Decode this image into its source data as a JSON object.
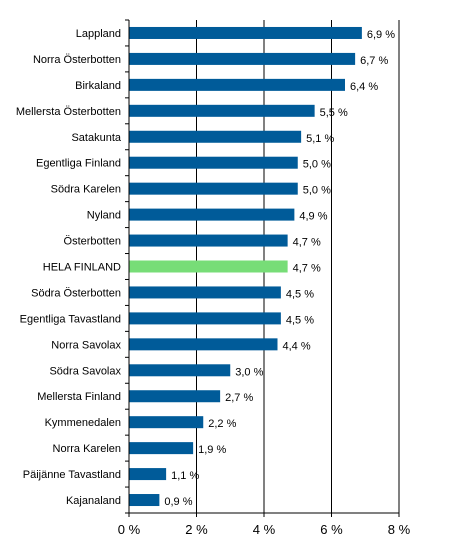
{
  "chart_data": {
    "type": "bar",
    "orientation": "horizontal",
    "categories": [
      "Lappland",
      "Norra Österbotten",
      "Birkaland",
      "Mellersta Österbotten",
      "Satakunta",
      "Egentliga Finland",
      "Södra Karelen",
      "Nyland",
      "Österbotten",
      "HELA FINLAND",
      "Södra Österbotten",
      "Egentliga Tavastland",
      "Norra Savolax",
      "Södra Savolax",
      "Mellersta Finland",
      "Kymmenedalen",
      "Norra Karelen",
      "Päijänne Tavastland",
      "Kajanaland"
    ],
    "values": [
      6.9,
      6.7,
      6.4,
      5.5,
      5.1,
      5.0,
      5.0,
      4.9,
      4.7,
      4.7,
      4.5,
      4.5,
      4.4,
      3.0,
      2.7,
      2.2,
      1.9,
      1.1,
      0.9
    ],
    "value_labels": [
      "6,9 %",
      "6,7 %",
      "6,4 %",
      "5,5 %",
      "5,1 %",
      "5,0 %",
      "5,0 %",
      "4,9 %",
      "4,7 %",
      "4,7 %",
      "4,5 %",
      "4,5 %",
      "4,4 %",
      "3,0 %",
      "2,7 %",
      "2,2 %",
      "1,9 %",
      "1,1 %",
      "0,9 %"
    ],
    "highlight": "HELA FINLAND",
    "xlim": [
      0,
      8
    ],
    "x_ticks": [
      0,
      2,
      4,
      6,
      8
    ],
    "x_tick_labels": [
      "0 %",
      "2 %",
      "4 %",
      "6 %",
      "8 %"
    ],
    "grid": "vertical",
    "colors": {
      "bar": "#005b99",
      "highlight": "#77dd77",
      "grid": "#000000",
      "axis": "#000000"
    }
  }
}
